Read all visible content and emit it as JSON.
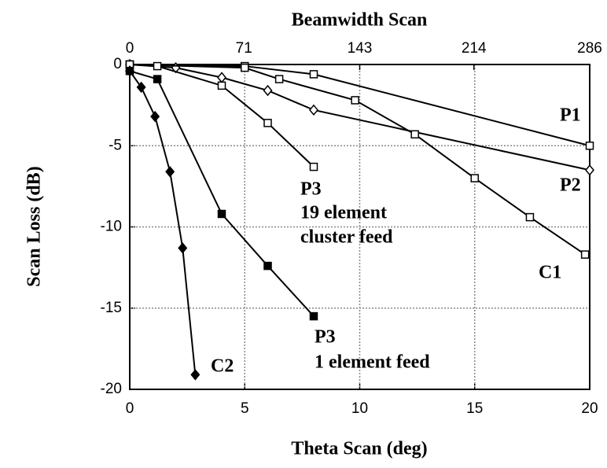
{
  "chart_data": {
    "type": "line",
    "title": "Beamwidth Scan",
    "x_label": "Theta Scan (deg)",
    "y_label": "Scan Loss (dB)",
    "xlim": [
      0,
      20
    ],
    "xticks": [
      0,
      5,
      10,
      15,
      20
    ],
    "x2lim": [
      0,
      286
    ],
    "x2ticks": [
      0,
      71,
      143,
      214,
      286
    ],
    "ylim": [
      -20,
      0
    ],
    "yticks": [
      0,
      -5,
      -10,
      -15,
      -20
    ],
    "grid": true,
    "color": "#000000",
    "series": [
      {
        "name": "P1",
        "marker": "open-square",
        "x": [
          0,
          5,
          8,
          20
        ],
        "values": [
          0,
          -0.1,
          -0.6,
          -5
        ]
      },
      {
        "name": "P2",
        "marker": "open-diamond",
        "x": [
          0,
          2,
          4,
          6,
          8,
          20
        ],
        "values": [
          0,
          -0.2,
          -0.8,
          -1.6,
          -2.8,
          -6.5
        ]
      },
      {
        "name": "C1",
        "marker": "open-square",
        "x": [
          0,
          5,
          6.5,
          9.8,
          12.4,
          15,
          17.4,
          19.8
        ],
        "values": [
          0,
          -0.2,
          -0.9,
          -2.2,
          -4.3,
          -7,
          -9.4,
          -11.7
        ]
      },
      {
        "name": "P3",
        "marker": "open-square",
        "x": [
          0,
          1.2,
          4,
          6,
          8
        ],
        "values": [
          0,
          -0.1,
          -1.3,
          -3.6,
          -6.3
        ]
      },
      {
        "name": "P3",
        "marker": "filled-square",
        "x": [
          0,
          1.2,
          4,
          6,
          8
        ],
        "values": [
          -0.4,
          -0.9,
          -9.2,
          -12.4,
          -15.5
        ]
      },
      {
        "name": "C2",
        "marker": "filled-diamond",
        "x": [
          0,
          0.5,
          1.1,
          1.75,
          2.3,
          2.85
        ],
        "values": [
          -0.4,
          -1.4,
          -3.2,
          -6.6,
          -11.3,
          -19.1
        ]
      }
    ],
    "annotations": [
      "19 element",
      "cluster feed",
      "1 element feed"
    ]
  }
}
